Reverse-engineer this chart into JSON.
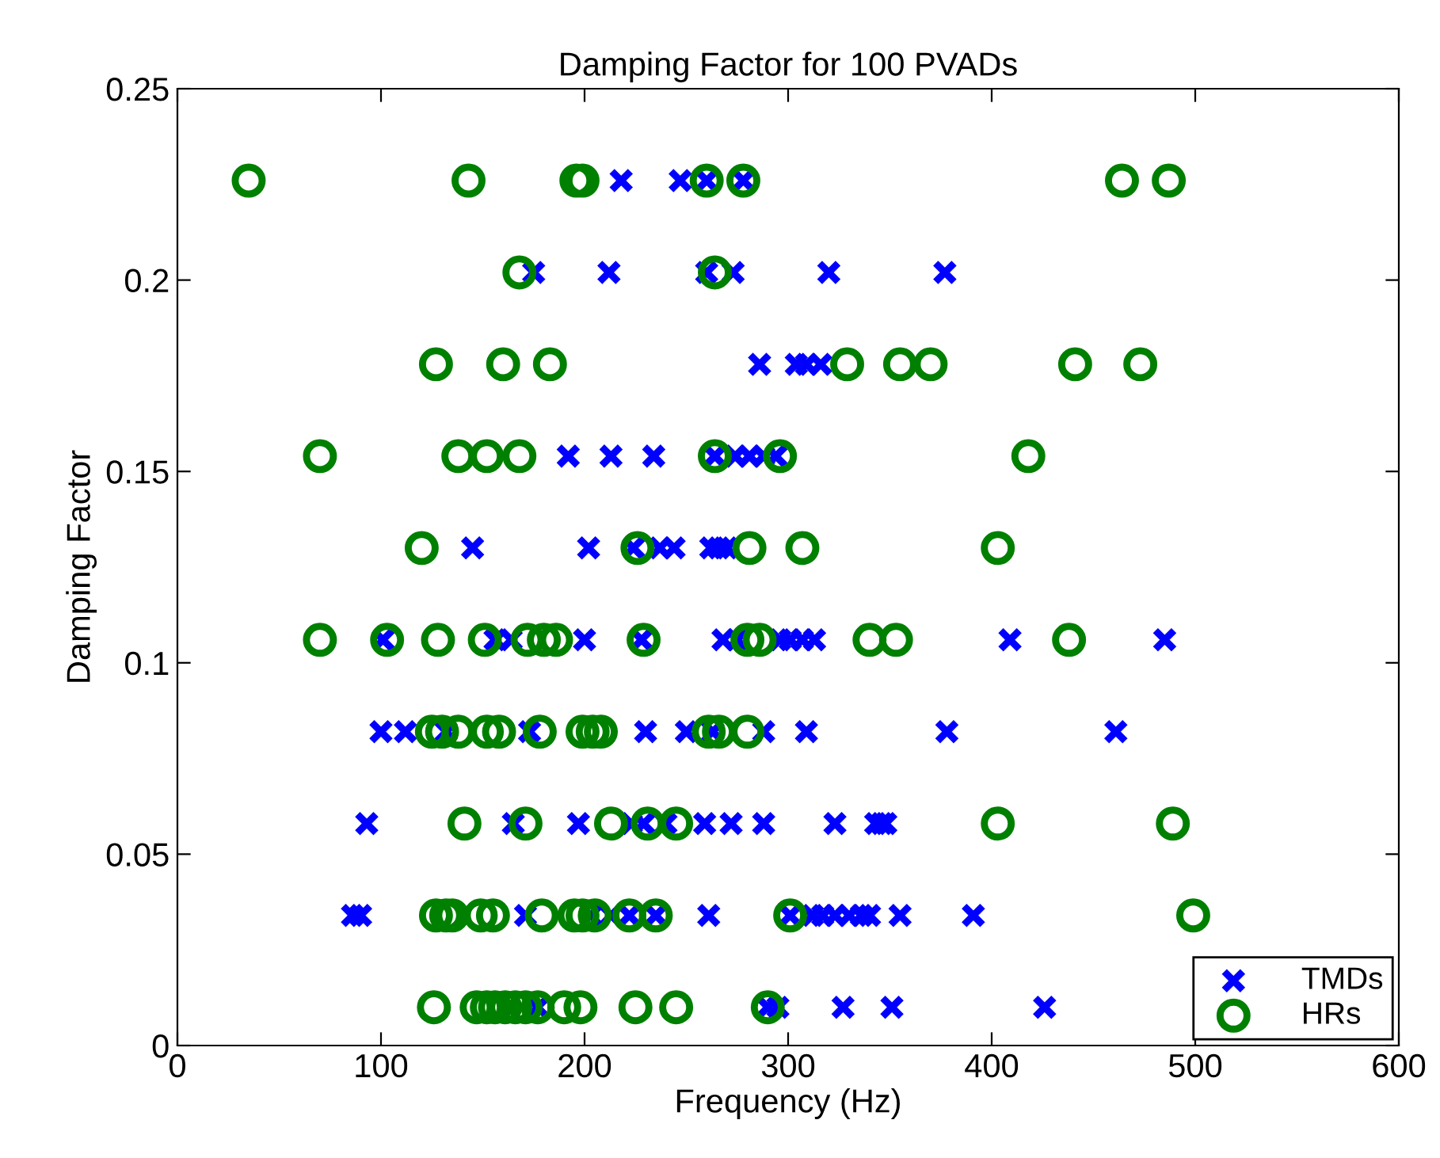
{
  "chart_data": {
    "type": "scatter",
    "title": "Damping Factor for 100 PVADs",
    "xlabel": "Frequency (Hz)",
    "ylabel": "Damping Factor",
    "xlim": [
      0,
      600
    ],
    "xticks": [
      0,
      100,
      200,
      300,
      400,
      500,
      600
    ],
    "ylim": [
      0,
      0.25
    ],
    "yticks": [
      0,
      0.05,
      0.1,
      0.15,
      0.2,
      0.25
    ],
    "grid": false,
    "legend": "bottom right",
    "series": [
      {
        "name": "TMDs",
        "color": "#0000ff",
        "marker": "cross",
        "x": [
          218,
          247,
          260,
          278,
          175,
          212,
          260,
          273,
          320,
          377,
          286,
          304,
          309,
          316,
          192,
          213,
          234,
          264,
          274,
          281,
          288,
          294,
          145,
          202,
          224,
          237,
          244,
          262,
          266,
          270,
          101,
          156,
          164,
          200,
          228,
          268,
          275,
          296,
          301,
          307,
          313,
          409,
          485,
          100,
          112,
          132,
          173,
          230,
          250,
          263,
          288,
          309,
          378,
          461,
          93,
          165,
          197,
          223,
          229,
          240,
          259,
          272,
          288,
          323,
          343,
          346,
          348,
          86,
          90,
          171,
          203,
          213,
          222,
          235,
          261,
          301,
          312,
          317,
          323,
          330,
          336,
          340,
          355,
          391,
          177,
          290,
          295,
          327,
          351,
          426
        ],
        "values": [
          0.226,
          0.226,
          0.226,
          0.226,
          0.202,
          0.202,
          0.202,
          0.202,
          0.202,
          0.202,
          0.178,
          0.178,
          0.178,
          0.178,
          0.154,
          0.154,
          0.154,
          0.154,
          0.154,
          0.154,
          0.154,
          0.154,
          0.13,
          0.13,
          0.13,
          0.13,
          0.13,
          0.13,
          0.13,
          0.13,
          0.106,
          0.106,
          0.106,
          0.106,
          0.106,
          0.106,
          0.106,
          0.106,
          0.106,
          0.106,
          0.106,
          0.106,
          0.106,
          0.082,
          0.082,
          0.082,
          0.082,
          0.082,
          0.082,
          0.082,
          0.082,
          0.082,
          0.082,
          0.082,
          0.058,
          0.058,
          0.058,
          0.058,
          0.058,
          0.058,
          0.058,
          0.058,
          0.058,
          0.058,
          0.058,
          0.058,
          0.058,
          0.034,
          0.034,
          0.034,
          0.034,
          0.034,
          0.034,
          0.034,
          0.034,
          0.034,
          0.034,
          0.034,
          0.034,
          0.034,
          0.034,
          0.034,
          0.034,
          0.034,
          0.01,
          0.01,
          0.01,
          0.01,
          0.01,
          0.01
        ]
      },
      {
        "name": "HRs",
        "color": "#008000",
        "marker": "circle",
        "x": [
          35,
          143,
          196,
          199,
          260,
          278,
          464,
          487,
          168,
          264,
          127,
          160,
          183,
          329,
          355,
          370,
          441,
          473,
          70,
          138,
          152,
          168,
          264,
          296,
          418,
          120,
          226,
          281,
          307,
          403,
          70,
          103,
          128,
          151,
          172,
          180,
          186,
          229,
          280,
          286,
          340,
          353,
          438,
          125,
          130,
          138,
          152,
          158,
          178,
          199,
          204,
          208,
          261,
          266,
          280,
          141,
          171,
          213,
          231,
          245,
          403,
          489,
          127,
          132,
          135,
          149,
          155,
          179,
          195,
          199,
          205,
          222,
          235,
          301,
          499,
          126,
          147,
          152,
          156,
          161,
          166,
          171,
          177,
          190,
          198,
          225,
          245,
          290
        ],
        "values": [
          0.226,
          0.226,
          0.226,
          0.226,
          0.226,
          0.226,
          0.226,
          0.226,
          0.202,
          0.202,
          0.178,
          0.178,
          0.178,
          0.178,
          0.178,
          0.178,
          0.178,
          0.178,
          0.154,
          0.154,
          0.154,
          0.154,
          0.154,
          0.154,
          0.154,
          0.13,
          0.13,
          0.13,
          0.13,
          0.13,
          0.106,
          0.106,
          0.106,
          0.106,
          0.106,
          0.106,
          0.106,
          0.106,
          0.106,
          0.106,
          0.106,
          0.106,
          0.106,
          0.082,
          0.082,
          0.082,
          0.082,
          0.082,
          0.082,
          0.082,
          0.082,
          0.082,
          0.082,
          0.082,
          0.082,
          0.058,
          0.058,
          0.058,
          0.058,
          0.058,
          0.058,
          0.058,
          0.034,
          0.034,
          0.034,
          0.034,
          0.034,
          0.034,
          0.034,
          0.034,
          0.034,
          0.034,
          0.034,
          0.034,
          0.034,
          0.01,
          0.01,
          0.01,
          0.01,
          0.01,
          0.01,
          0.01,
          0.01,
          0.01,
          0.01,
          0.01,
          0.01,
          0.01
        ]
      }
    ]
  }
}
